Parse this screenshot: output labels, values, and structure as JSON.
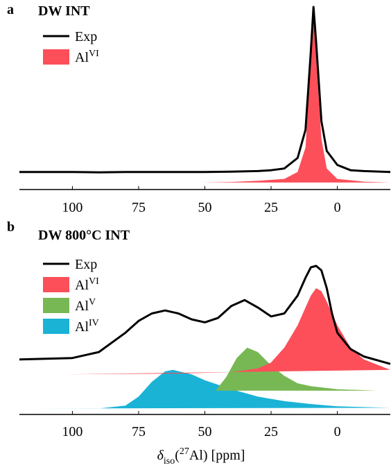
{
  "chart_data": [
    {
      "type": "line",
      "panel_label": "a",
      "title": "DW INT",
      "xlim": [
        120,
        -20
      ],
      "xticks": [
        100,
        75,
        50,
        25,
        0
      ],
      "ylim": [
        -0.04,
        1.0
      ],
      "series": [
        {
          "name": "Exp",
          "color": "#000000",
          "fill": false,
          "x": [
            120,
            110,
            100,
            90,
            80,
            70,
            60,
            50,
            40,
            30,
            25,
            20,
            15,
            12,
            10,
            9,
            8,
            6,
            4,
            0,
            -5,
            -10,
            -20
          ],
          "values": [
            0.06,
            0.06,
            0.06,
            0.058,
            0.06,
            0.06,
            0.06,
            0.06,
            0.062,
            0.065,
            0.07,
            0.08,
            0.14,
            0.3,
            0.75,
            1.0,
            0.8,
            0.35,
            0.18,
            0.1,
            0.07,
            0.065,
            0.06
          ]
        },
        {
          "name": "Al",
          "superscript": "VI",
          "color": "#fc4f5a",
          "fill": true,
          "x": [
            51,
            40,
            30,
            20,
            15,
            12,
            10,
            9,
            8,
            6,
            4,
            0,
            -10,
            -20
          ],
          "values": [
            0,
            0.003,
            0.01,
            0.02,
            0.06,
            0.2,
            0.7,
            0.96,
            0.72,
            0.25,
            0.08,
            0.02,
            0.005,
            0
          ]
        }
      ]
    },
    {
      "type": "line",
      "panel_label": "b",
      "title": "DW 800°C INT",
      "x_label": [
        {
          "text": "δ"
        },
        {
          "text": "iso",
          "shift": "sub"
        },
        {
          "text": "("
        },
        {
          "text": "27",
          "shift": "super"
        },
        {
          "text": "Al) [ppm]"
        }
      ],
      "xlim": [
        120,
        -20
      ],
      "xticks": [
        100,
        75,
        50,
        25,
        0
      ],
      "ylim": [
        0,
        1.0
      ],
      "series": [
        {
          "name": "Exp",
          "color": "#000000",
          "fill": false,
          "x": [
            120,
            110,
            100,
            90,
            80,
            75,
            70,
            65,
            60,
            55,
            50,
            45,
            40,
            35,
            30,
            25,
            20,
            15,
            12,
            10,
            8,
            6,
            4,
            2,
            0,
            -5,
            -10,
            -20
          ],
          "values": [
            0.37,
            0.375,
            0.38,
            0.42,
            0.55,
            0.63,
            0.68,
            0.7,
            0.68,
            0.64,
            0.62,
            0.65,
            0.73,
            0.77,
            0.72,
            0.66,
            0.68,
            0.8,
            0.92,
            0.99,
            1.0,
            0.97,
            0.85,
            0.68,
            0.55,
            0.44,
            0.39,
            0.34
          ]
        },
        {
          "name": "Al",
          "superscript": "VI",
          "color": "#fc4f5a",
          "fill": true,
          "x": [
            103,
            60,
            40,
            30,
            25,
            20,
            15,
            12,
            10,
            8,
            6,
            4,
            0,
            -5,
            -10,
            -20
          ],
          "values": [
            0.27,
            0.275,
            0.285,
            0.31,
            0.35,
            0.45,
            0.6,
            0.72,
            0.8,
            0.85,
            0.83,
            0.76,
            0.6,
            0.45,
            0.37,
            0.3
          ]
        },
        {
          "name": "Al",
          "superscript": "V",
          "color": "#78b854",
          "fill": true,
          "x": [
            46,
            42,
            38,
            34,
            30,
            25,
            20,
            15,
            10,
            0,
            -15
          ],
          "values": [
            0.16,
            0.25,
            0.38,
            0.45,
            0.42,
            0.33,
            0.26,
            0.21,
            0.19,
            0.17,
            0.16
          ]
        },
        {
          "name": "Al",
          "superscript": "IV",
          "color": "#1ab3d6",
          "fill": true,
          "x": [
            117,
            90,
            80,
            75,
            70,
            65,
            62,
            55,
            50,
            40,
            30,
            20,
            10,
            0,
            -20
          ],
          "values": [
            0.04,
            0.04,
            0.06,
            0.12,
            0.22,
            0.29,
            0.3,
            0.27,
            0.23,
            0.17,
            0.12,
            0.09,
            0.07,
            0.055,
            0.045
          ]
        }
      ]
    }
  ]
}
